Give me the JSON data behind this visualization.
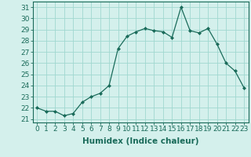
{
  "x": [
    0,
    1,
    2,
    3,
    4,
    5,
    6,
    7,
    8,
    9,
    10,
    11,
    12,
    13,
    14,
    15,
    16,
    17,
    18,
    19,
    20,
    21,
    22,
    23
  ],
  "y": [
    22.0,
    21.7,
    21.7,
    21.3,
    21.5,
    22.5,
    23.0,
    23.3,
    24.0,
    27.3,
    28.4,
    28.8,
    29.1,
    28.9,
    28.8,
    28.3,
    31.0,
    28.9,
    28.7,
    29.1,
    27.7,
    26.0,
    25.3,
    23.8
  ],
  "line_color": "#1a6b5a",
  "marker": "D",
  "marker_size": 2.0,
  "bg_color": "#d4f0ec",
  "grid_color": "#a0d8d0",
  "xlabel": "Humidex (Indice chaleur)",
  "xlabel_fontsize": 7.5,
  "ylabel_ticks": [
    21,
    22,
    23,
    24,
    25,
    26,
    27,
    28,
    29,
    30,
    31
  ],
  "xtick_labels": [
    "0",
    "1",
    "2",
    "3",
    "4",
    "5",
    "6",
    "7",
    "8",
    "9",
    "10",
    "11",
    "12",
    "13",
    "14",
    "15",
    "16",
    "17",
    "18",
    "19",
    "20",
    "21",
    "22",
    "23"
  ],
  "ylim": [
    20.7,
    31.5
  ],
  "xlim": [
    -0.5,
    23.5
  ],
  "tick_fontsize": 6.5
}
